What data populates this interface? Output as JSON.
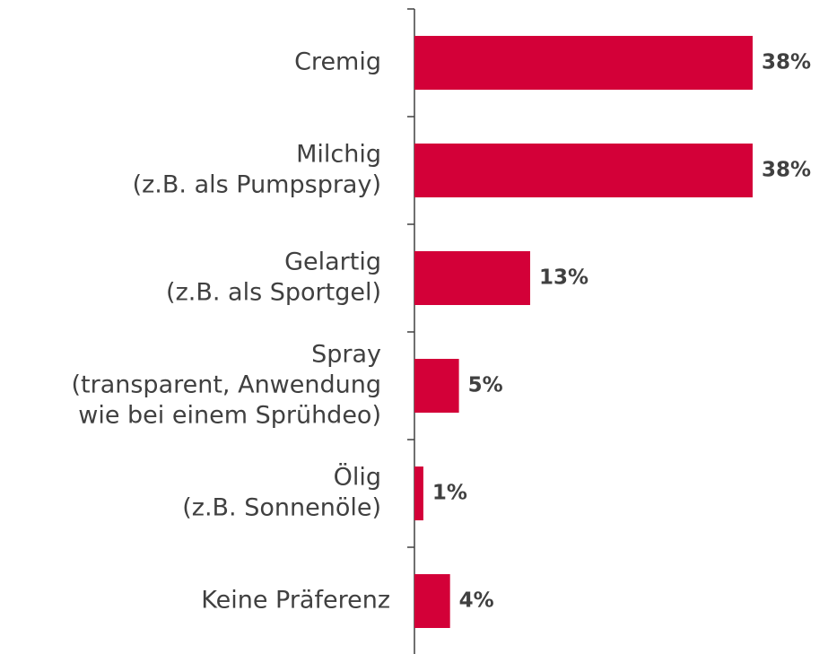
{
  "chart_data": {
    "type": "bar",
    "orientation": "horizontal",
    "color": "#d30038",
    "categories": [
      [
        "Cremig"
      ],
      [
        "Milchig",
        "(z.B. als Pumpspray)"
      ],
      [
        "Gelartig",
        "(z.B. als Sportgel)"
      ],
      [
        "Spray",
        "(transparent, Anwendung",
        "wie bei einem Sprühdeo)"
      ],
      [
        "Ölig",
        "(z.B. Sonnenöle)"
      ],
      [
        "Keine Präferenz"
      ]
    ],
    "values": [
      38,
      38,
      13,
      5,
      1,
      4
    ],
    "value_labels": [
      "38%",
      "38%",
      "13%",
      "5%",
      "1%",
      "4%"
    ]
  }
}
